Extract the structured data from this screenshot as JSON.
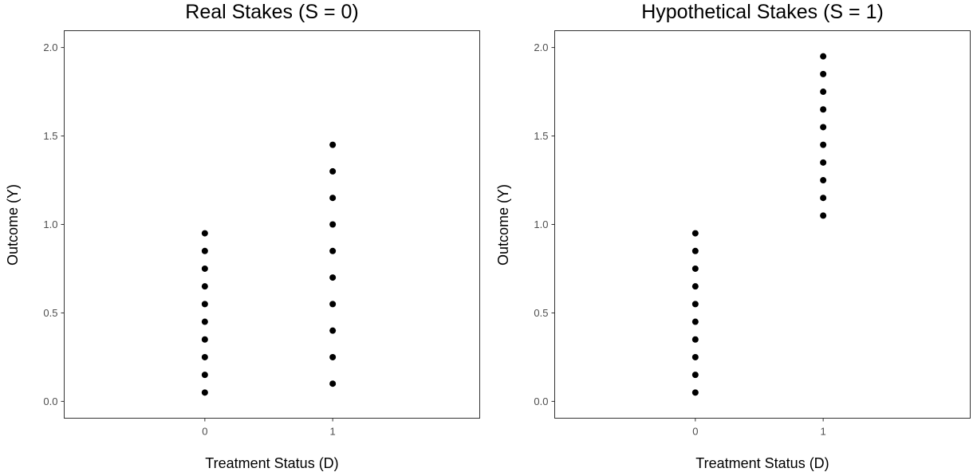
{
  "chart_data": [
    {
      "type": "scatter",
      "title": "Real Stakes (S = 0)",
      "xlabel": "Treatment Status (D)",
      "ylabel": "Outcome (Y)",
      "x_ticks": [
        "0",
        "1"
      ],
      "y_ticks": [
        "0.0",
        "0.5",
        "1.0",
        "1.5",
        "2.0"
      ],
      "xlim": [
        -1.1,
        2.15
      ],
      "ylim": [
        -0.095,
        2.095
      ],
      "grid": true,
      "points": [
        {
          "x": 0,
          "y": 0.05
        },
        {
          "x": 0,
          "y": 0.15
        },
        {
          "x": 0,
          "y": 0.25
        },
        {
          "x": 0,
          "y": 0.35
        },
        {
          "x": 0,
          "y": 0.45
        },
        {
          "x": 0,
          "y": 0.55
        },
        {
          "x": 0,
          "y": 0.65
        },
        {
          "x": 0,
          "y": 0.75
        },
        {
          "x": 0,
          "y": 0.85
        },
        {
          "x": 0,
          "y": 0.95
        },
        {
          "x": 1,
          "y": 0.1
        },
        {
          "x": 1,
          "y": 0.25
        },
        {
          "x": 1,
          "y": 0.4
        },
        {
          "x": 1,
          "y": 0.55
        },
        {
          "x": 1,
          "y": 0.7
        },
        {
          "x": 1,
          "y": 0.85
        },
        {
          "x": 1,
          "y": 1.0
        },
        {
          "x": 1,
          "y": 1.15
        },
        {
          "x": 1,
          "y": 1.3
        },
        {
          "x": 1,
          "y": 1.45
        }
      ]
    },
    {
      "type": "scatter",
      "title": "Hypothetical Stakes (S = 1)",
      "xlabel": "Treatment Status (D)",
      "ylabel": "Outcome (Y)",
      "x_ticks": [
        "0",
        "1"
      ],
      "y_ticks": [
        "0.0",
        "0.5",
        "1.0",
        "1.5",
        "2.0"
      ],
      "xlim": [
        -1.1,
        2.15
      ],
      "ylim": [
        -0.095,
        2.095
      ],
      "grid": true,
      "points": [
        {
          "x": 0,
          "y": 0.05
        },
        {
          "x": 0,
          "y": 0.15
        },
        {
          "x": 0,
          "y": 0.25
        },
        {
          "x": 0,
          "y": 0.35
        },
        {
          "x": 0,
          "y": 0.45
        },
        {
          "x": 0,
          "y": 0.55
        },
        {
          "x": 0,
          "y": 0.65
        },
        {
          "x": 0,
          "y": 0.75
        },
        {
          "x": 0,
          "y": 0.85
        },
        {
          "x": 0,
          "y": 0.95
        },
        {
          "x": 1,
          "y": 1.05
        },
        {
          "x": 1,
          "y": 1.15
        },
        {
          "x": 1,
          "y": 1.25
        },
        {
          "x": 1,
          "y": 1.35
        },
        {
          "x": 1,
          "y": 1.45
        },
        {
          "x": 1,
          "y": 1.55
        },
        {
          "x": 1,
          "y": 1.65
        },
        {
          "x": 1,
          "y": 1.75
        },
        {
          "x": 1,
          "y": 1.85
        },
        {
          "x": 1,
          "y": 1.95
        }
      ]
    }
  ]
}
